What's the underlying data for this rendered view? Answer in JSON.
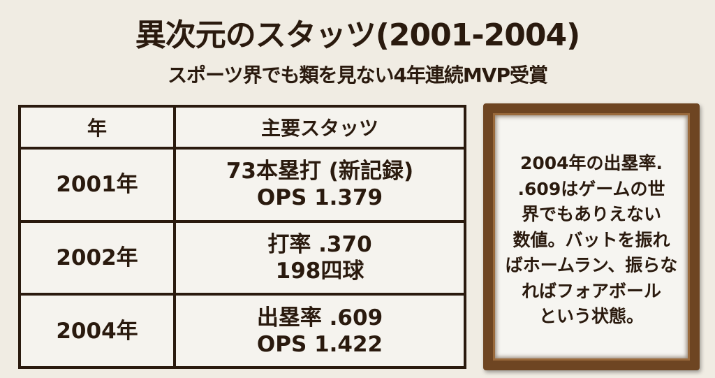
{
  "title": "異次元のスタッツ(2001-2004)",
  "subtitle": "スポーツ界でも類を見ない4年連続MVP受賞",
  "table": {
    "headers": [
      "年",
      "主要スタッツ"
    ],
    "rows": [
      {
        "year": "2001年",
        "line1": "73本塁打 (新記録)",
        "line2": "OPS 1.379"
      },
      {
        "year": "2002年",
        "line1": "打率 .370",
        "line2": "198四球"
      },
      {
        "year": "2004年",
        "line1": "出塁率 .609",
        "line2": "OPS 1.422"
      }
    ]
  },
  "note": {
    "lines": [
      "2004年の出塁率.",
      ".609はゲームの世",
      "界でもありえない",
      "数値。バットを振れ",
      "ばホームラン、振らな",
      "ればフォアボール",
      "という状態。"
    ]
  },
  "colors": {
    "text": "#2a1a0e",
    "background": "#f0ece3",
    "frame": "#6e4522"
  }
}
